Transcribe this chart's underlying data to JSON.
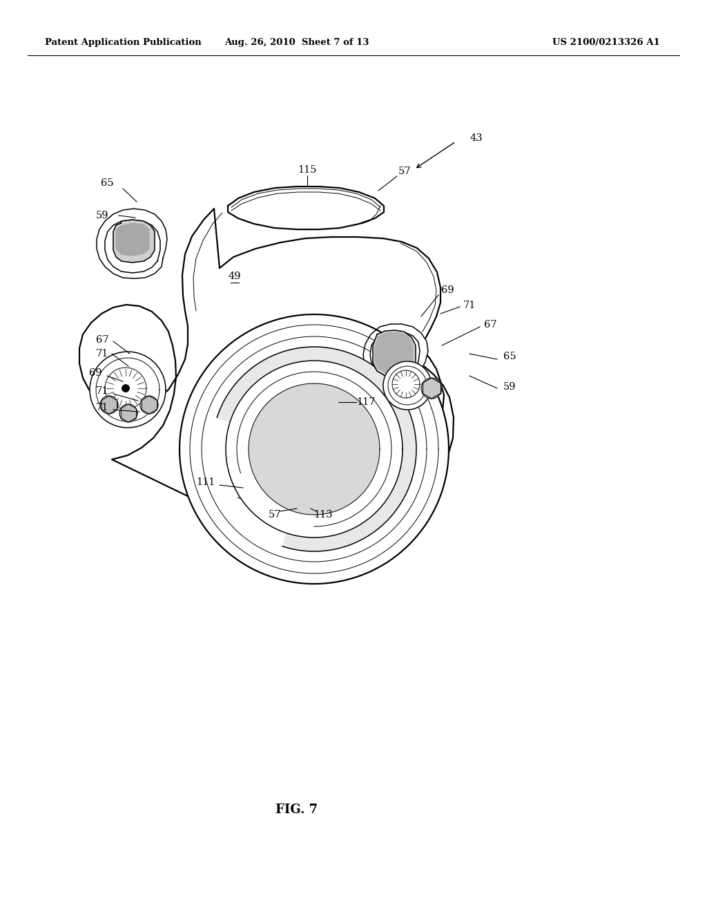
{
  "bg_color": "#ffffff",
  "line_color": "#000000",
  "header_left": "Patent Application Publication",
  "header_mid": "Aug. 26, 2010  Sheet 7 of 13",
  "header_right": "US 2100/0213326 A1",
  "fig_label": "FIG. 7",
  "lw_main": 1.6,
  "lw_med": 1.1,
  "lw_thin": 0.7,
  "label_fs": 10.5,
  "header_fs": 9.5
}
